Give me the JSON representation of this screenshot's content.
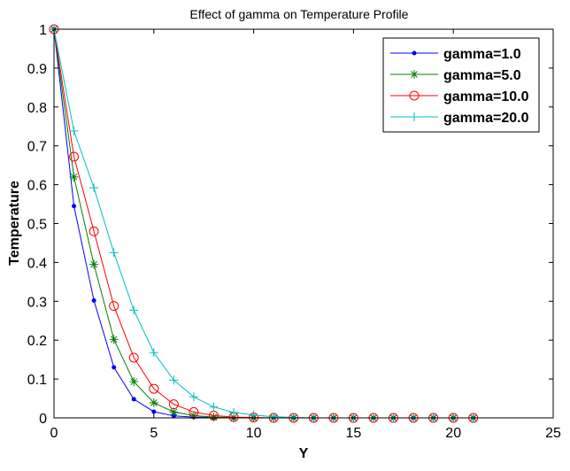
{
  "chart_data": {
    "type": "line",
    "title": "Effect of gamma on Temperature Profile",
    "xlabel": "Y",
    "ylabel": "Temperature",
    "xlim": [
      0,
      25
    ],
    "ylim": [
      0,
      1
    ],
    "xticks": [
      0,
      5,
      10,
      15,
      20,
      25
    ],
    "yticks": [
      0,
      0.1,
      0.2,
      0.3,
      0.4,
      0.5,
      0.6,
      0.7,
      0.8,
      0.9,
      1
    ],
    "grid": false,
    "legend_position": "top-right",
    "x": [
      0,
      1,
      2,
      3,
      4,
      5,
      6,
      7,
      8,
      9,
      10,
      11,
      12,
      13,
      14,
      15,
      16,
      17,
      18,
      19,
      20,
      21
    ],
    "series": [
      {
        "name": "gamma=1.0",
        "color": "#0000ff",
        "marker": "dot",
        "values": [
          1.0,
          0.545,
          0.302,
          0.13,
          0.048,
          0.016,
          0.005,
          0.002,
          0.001,
          0,
          0,
          0,
          0,
          0,
          0,
          0,
          0,
          0,
          0,
          0,
          0,
          0
        ]
      },
      {
        "name": "gamma=5.0",
        "color": "#007f00",
        "marker": "star",
        "values": [
          1.0,
          0.62,
          0.395,
          0.202,
          0.093,
          0.039,
          0.015,
          0.006,
          0.002,
          0.001,
          0,
          0,
          0,
          0,
          0,
          0,
          0,
          0,
          0,
          0,
          0,
          0
        ]
      },
      {
        "name": "gamma=10.0",
        "color": "#ff0000",
        "marker": "circle",
        "values": [
          1.0,
          0.672,
          0.48,
          0.288,
          0.155,
          0.075,
          0.035,
          0.015,
          0.006,
          0.002,
          0.001,
          0,
          0,
          0,
          0,
          0,
          0,
          0,
          0,
          0,
          0,
          0
        ]
      },
      {
        "name": "gamma=20.0",
        "color": "#00bfbf",
        "marker": "plus",
        "values": [
          1.0,
          0.738,
          0.592,
          0.425,
          0.277,
          0.168,
          0.097,
          0.054,
          0.028,
          0.014,
          0.007,
          0.003,
          0.001,
          0,
          0,
          0,
          0,
          0,
          0,
          0,
          0,
          0
        ]
      }
    ]
  }
}
